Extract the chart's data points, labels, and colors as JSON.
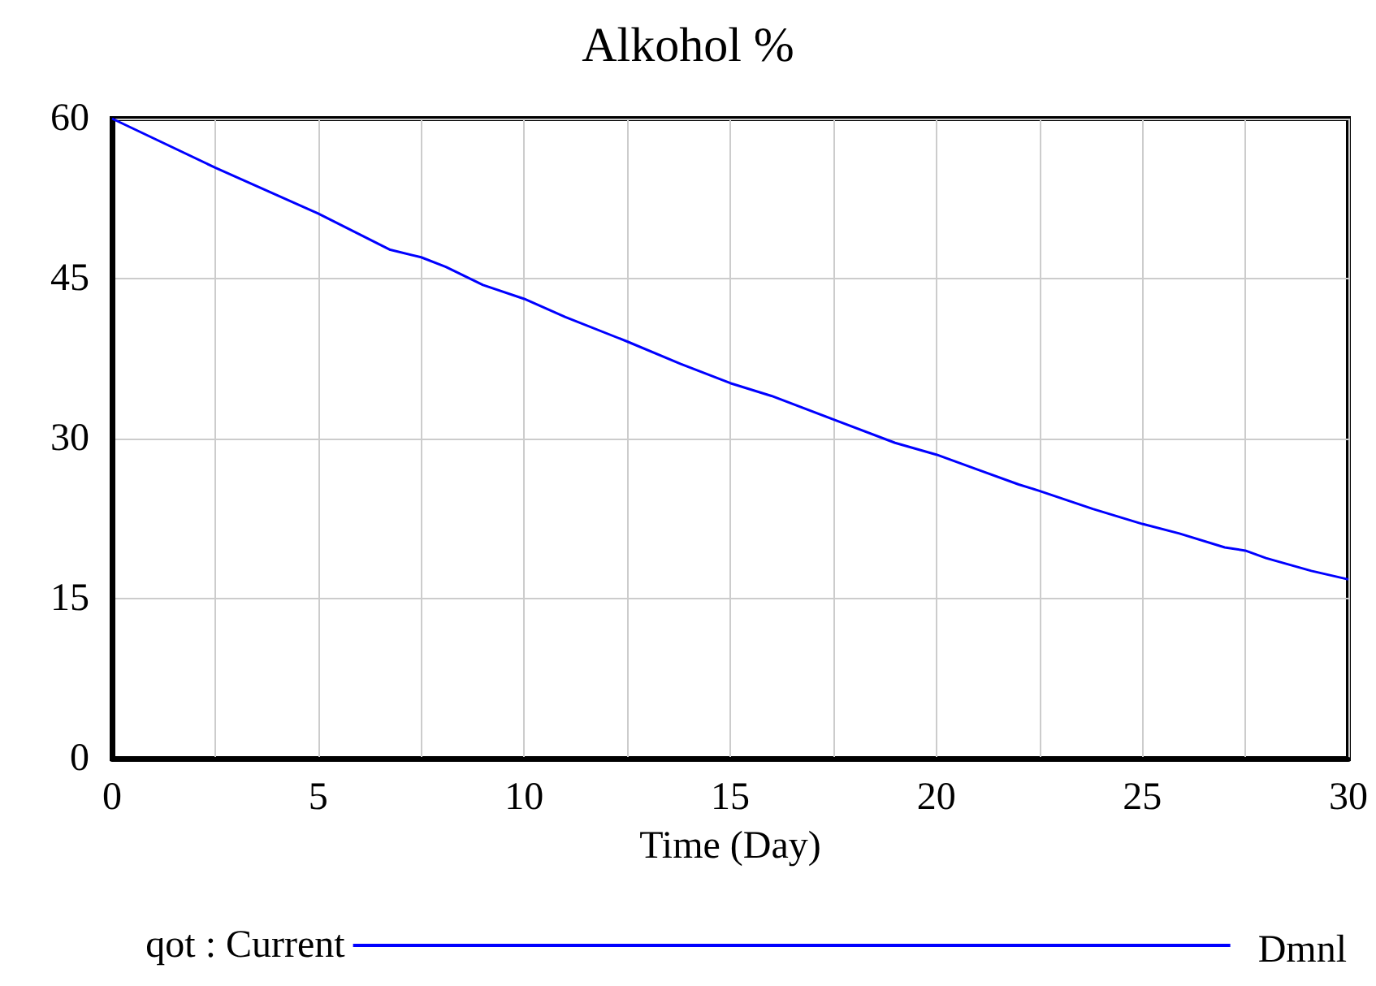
{
  "chart_data": {
    "type": "line",
    "title": "Alkohol %",
    "xlabel": "Time (Day)",
    "x": [
      0,
      2.5,
      5,
      6.75,
      7.5,
      8.1,
      9,
      10,
      11,
      12.5,
      13.8,
      15,
      16,
      17.5,
      19,
      20,
      21,
      22,
      22.5,
      23.8,
      25,
      25.9,
      27,
      27.5,
      28,
      29.1,
      30
    ],
    "series": [
      {
        "name": "qot : Current",
        "color": "#0000ff",
        "values": [
          60,
          55.4,
          51.1,
          47.7,
          47.0,
          46.1,
          44.4,
          43.1,
          41.4,
          39.1,
          37.0,
          35.2,
          34.0,
          31.8,
          29.6,
          28.5,
          27.1,
          25.7,
          25.1,
          23.4,
          22.0,
          21.1,
          19.8,
          19.5,
          18.8,
          17.6,
          16.8
        ]
      }
    ],
    "xlim": [
      0,
      30
    ],
    "xticks": [
      0,
      {
        "value": 2.5,
        "label": null
      },
      5,
      {
        "value": 7.5,
        "label": null
      },
      10,
      {
        "value": 12.5,
        "label": null
      },
      15,
      {
        "value": 17.5,
        "label": null
      },
      20,
      {
        "value": 22.5,
        "label": null
      },
      25,
      {
        "value": 27.5,
        "label": null
      },
      30
    ],
    "ylim": [
      0,
      60
    ],
    "yticks": [
      0,
      15,
      30,
      45,
      60
    ],
    "grid": true,
    "legend": "bottom",
    "marker": "none",
    "line_style": "solid",
    "annotations": [
      "Dmnl"
    ]
  }
}
